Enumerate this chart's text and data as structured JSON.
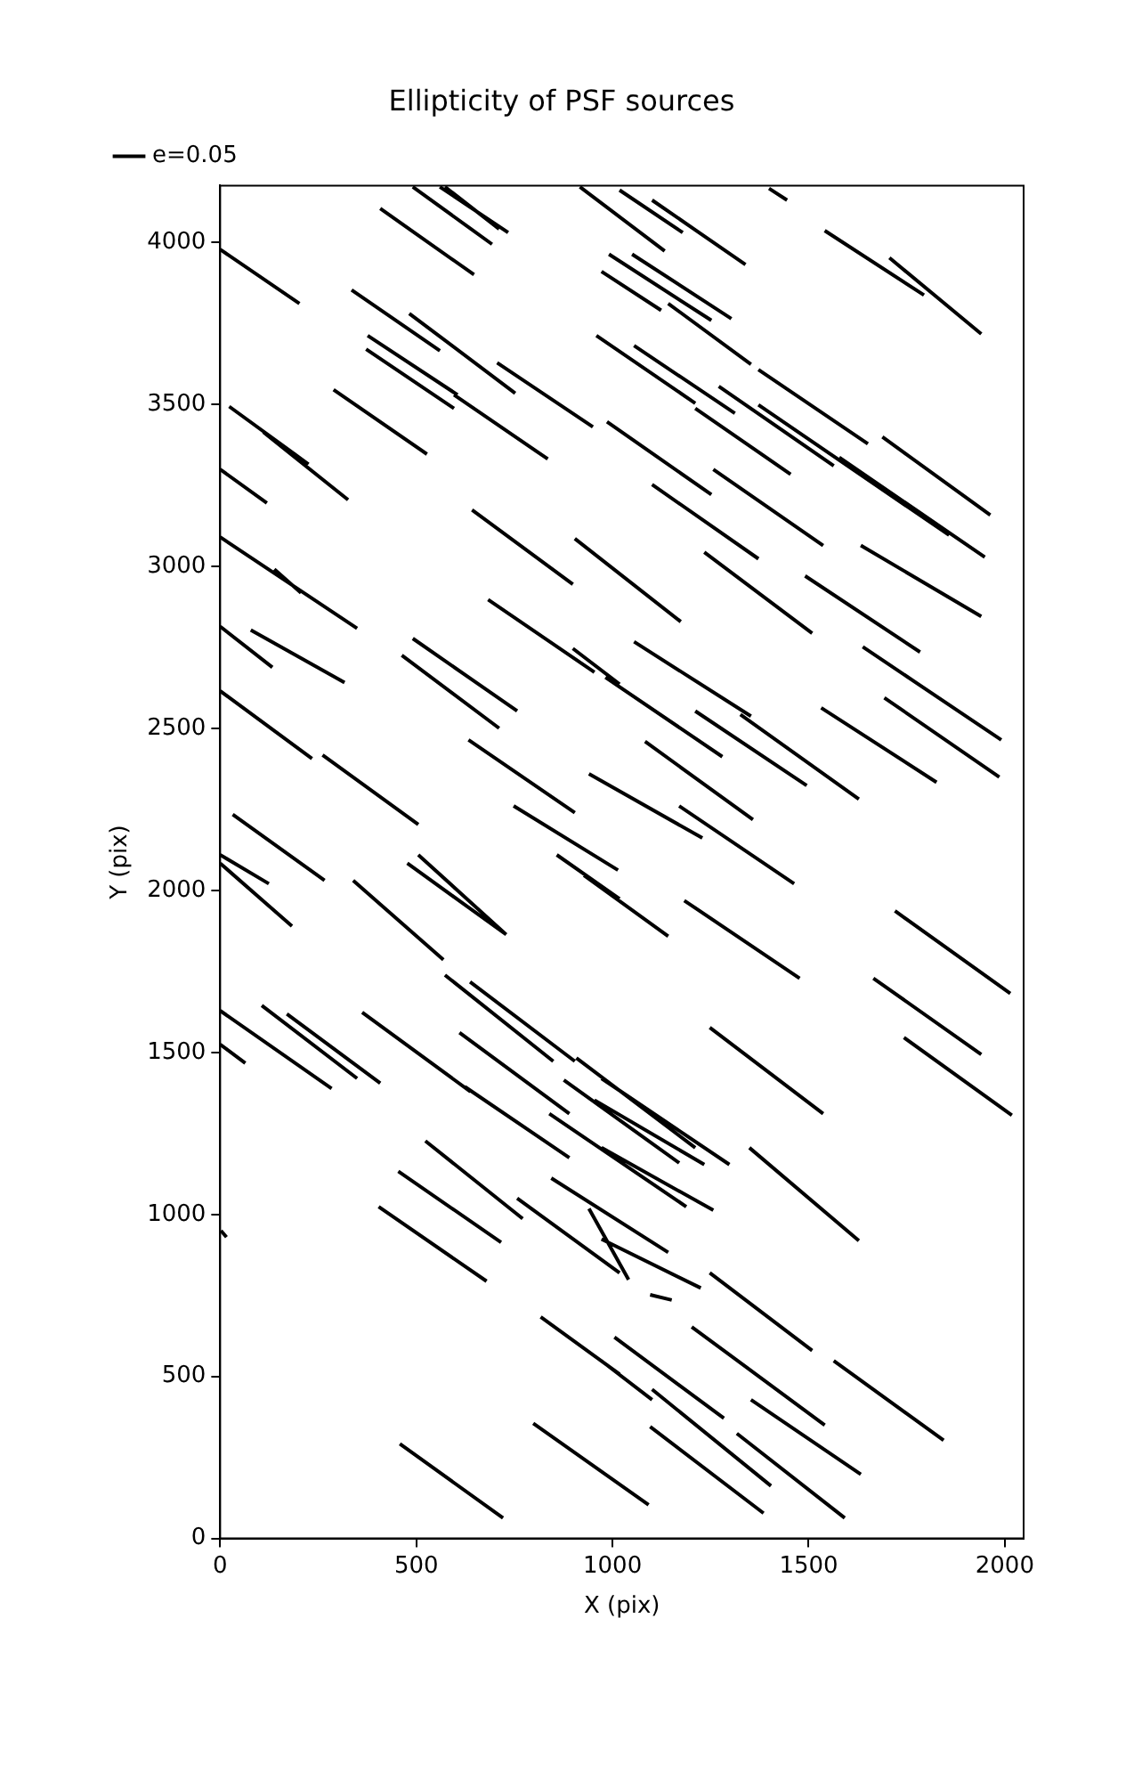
{
  "chart_data": {
    "type": "line",
    "title": "Ellipticity of PSF sources",
    "xlabel": "X (pix)",
    "ylabel": "Y (pix)",
    "xlim": [
      0,
      2048
    ],
    "ylim": [
      0,
      4176
    ],
    "xticks": [
      0,
      500,
      1000,
      1500,
      2000
    ],
    "yticks": [
      0,
      500,
      1000,
      1500,
      2000,
      2500,
      3000,
      3500,
      4000
    ],
    "grid": false,
    "legend": "top left",
    "marker": "none",
    "line_style": "solid",
    "series": [
      {
        "name": "e=0.05",
        "color": "#000000",
        "x": [
          408,
          647,
          null,
          491,
          693,
          null,
          560,
          734,
          null,
          573,
          711,
          null,
          917,
          1133,
          null,
          1018,
          1179,
          null,
          1101,
          1339,
          null,
          1399,
          1445,
          null,
          1541,
          1794,
          null,
          1706,
          1940,
          null,
          0,
          202,
          null,
          335,
          560,
          null,
          482,
          752,
          null,
          376,
          605,
          null,
          372,
          596,
          null,
          706,
          950,
          null,
          596,
          835,
          null,
          991,
          1252,
          null,
          1050,
          1303,
          null,
          972,
          1124,
          null,
          1142,
          1353,
          null,
          289,
          527,
          null,
          23,
          225,
          null,
          110,
          326,
          null,
          0,
          119,
          null,
          1372,
          1651,
          null,
          959,
          1211,
          null,
          1055,
          1312,
          null,
          1271,
          1564,
          null,
          1211,
          1454,
          null,
          1372,
          1858,
          null,
          1578,
          1949,
          null,
          1688,
          1963,
          null,
          986,
          1252,
          null,
          1257,
          1537,
          null,
          1101,
          1372,
          null,
          642,
          899,
          null,
          904,
          1174,
          null,
          1234,
          1509,
          null,
          1491,
          1784,
          null,
          1633,
          1940,
          null,
          0,
          349,
          null,
          138,
          206,
          null,
          0,
          133,
          null,
          78,
          317,
          null,
          683,
          954,
          null,
          899,
          1018,
          null,
          982,
          1280,
          null,
          491,
          757,
          null,
          463,
          711,
          null,
          0,
          234,
          null,
          261,
          505,
          null,
          633,
          904,
          null,
          940,
          1229,
          null,
          32,
          266,
          null,
          748,
          1014,
          null,
          1055,
          1353,
          null,
          1326,
          1628,
          null,
          1211,
          1495,
          null,
          1083,
          1358,
          null,
          1532,
          1826,
          null,
          1638,
          1991,
          null,
          1693,
          1986,
          null,
          1170,
          1463,
          null,
          0,
          124,
          null,
          0,
          183,
          null,
          339,
          569,
          null,
          477,
          729,
          null,
          505,
          729,
          null,
          858,
          1018,
          null,
          927,
          1142,
          null,
          1183,
          1477,
          null,
          1720,
          2014,
          null,
          1665,
          1940,
          null,
          1743,
          2018,
          null,
          1248,
          1537,
          null,
          0,
          284,
          null,
          0,
          64,
          null,
          106,
          349,
          null,
          170,
          408,
          null,
          362,
          638,
          null,
          624,
          890,
          null,
          573,
          849,
          null,
          637,
          904,
          null,
          610,
          890,
          null,
          908,
          1211,
          null,
          876,
          1170,
          null,
          954,
          1234,
          null,
          972,
          1298,
          null,
          839,
          1188,
          null,
          972,
          1257,
          null,
          1349,
          1628,
          null,
          523,
          771,
          null,
          454,
          716,
          null,
          404,
          679,
          null,
          757,
          1018,
          null,
          844,
          1142,
          null,
          940,
          1041,
          null,
          972,
          1225,
          null,
          1096,
          1151,
          null,
          1202,
          1541,
          null,
          1248,
          1509,
          null,
          1564,
          1844,
          null,
          1005,
          1284,
          null,
          972,
          1101,
          null,
          1101,
          1404,
          null,
          1353,
          1633,
          null,
          1096,
          1385,
          null,
          1317,
          1592,
          null,
          817,
          1018,
          null,
          798,
          1092,
          null,
          458,
          721
        ],
        "values": [
          4105,
          3901,
          null,
          4172,
          3995,
          null,
          4172,
          4031,
          null,
          4172,
          4042,
          null,
          4172,
          3974,
          null,
          4162,
          4031,
          null,
          4131,
          3932,
          null,
          4167,
          4131,
          null,
          4037,
          3838,
          null,
          3953,
          3718,
          null,
          3979,
          3812,
          null,
          3854,
          3666,
          null,
          3781,
          3535,
          null,
          3713,
          3530,
          null,
          3671,
          3488,
          null,
          3629,
          3431,
          null,
          3530,
          3332,
          null,
          3964,
          3760,
          null,
          3964,
          3765,
          null,
          3911,
          3791,
          null,
          3812,
          3624,
          null,
          3546,
          3347,
          null,
          3494,
          3316,
          null,
          3415,
          3206,
          null,
          3300,
          3196,
          null,
          3608,
          3379,
          null,
          3713,
          3504,
          null,
          3682,
          3473,
          null,
          3556,
          3311,
          null,
          3488,
          3285,
          null,
          3499,
          3097,
          null,
          3337,
          3029,
          null,
          3400,
          3159,
          null,
          3447,
          3222,
          null,
          3300,
          3065,
          null,
          3253,
          3024,
          null,
          3175,
          2945,
          null,
          3086,
          2830,
          null,
          3044,
          2794,
          null,
          2971,
          2736,
          null,
          3065,
          2846,
          null,
          3091,
          2809,
          null,
          2992,
          2919,
          null,
          2815,
          2689,
          null,
          2804,
          2642,
          null,
          2898,
          2674,
          null,
          2747,
          2637,
          null,
          2658,
          2413,
          null,
          2778,
          2554,
          null,
          2726,
          2501,
          null,
          2616,
          2407,
          null,
          2418,
          2204,
          null,
          2465,
          2240,
          null,
          2360,
          2162,
          null,
          2235,
          2031,
          null,
          2261,
          2063,
          null,
          2768,
          2538,
          null,
          2543,
          2282,
          null,
          2554,
          2324,
          null,
          2460,
          2219,
          null,
          2564,
          2334,
          null,
          2752,
          2465,
          null,
          2595,
          2350,
          null,
          2261,
          2021,
          null,
          2110,
          2021,
          null,
          2084,
          1890,
          null,
          2031,
          1786,
          null,
          2084,
          1864,
          null,
          2110,
          1864,
          null,
          2110,
          1974,
          null,
          2047,
          1859,
          null,
          1969,
          1729,
          null,
          1937,
          1682,
          null,
          1729,
          1494,
          null,
          1546,
          1306,
          null,
          1577,
          1311,
          null,
          1629,
          1389,
          null,
          1525,
          1467,
          null,
          1645,
          1420,
          null,
          1619,
          1405,
          null,
          1624,
          1379,
          null,
          1394,
          1175,
          null,
          1739,
          1473,
          null,
          1718,
          1473,
          null,
          1561,
          1311,
          null,
          1483,
          1206,
          null,
          1415,
          1159,
          null,
          1353,
          1154,
          null,
          1420,
          1154,
          null,
          1311,
          1024,
          null,
          1206,
          1013,
          null,
          1206,
          919,
          null,
          1227,
          987,
          null,
          1133,
          914,
          null,
          1024,
          794,
          null,
          1050,
          820,
          null,
          1112,
          883,
          null,
          1018,
          799,
          null,
          924,
          773,
          null,
          752,
          736,
          null,
          653,
          350,
          null,
          820,
          580,
          null,
          548,
          303,
          null,
          621,
          371,
          null,
          548,
          428,
          null,
          460,
          162,
          null,
          428,
          198,
          null,
          345,
          78,
          null,
          324,
          63,
          null,
          684,
          507,
          null,
          355,
          104,
          null,
          292,
          63
        ]
      },
      {
        "color": "#000000",
        "x": [
          2,
          16
        ],
        "values": [
          950,
          930
        ]
      }
    ]
  }
}
